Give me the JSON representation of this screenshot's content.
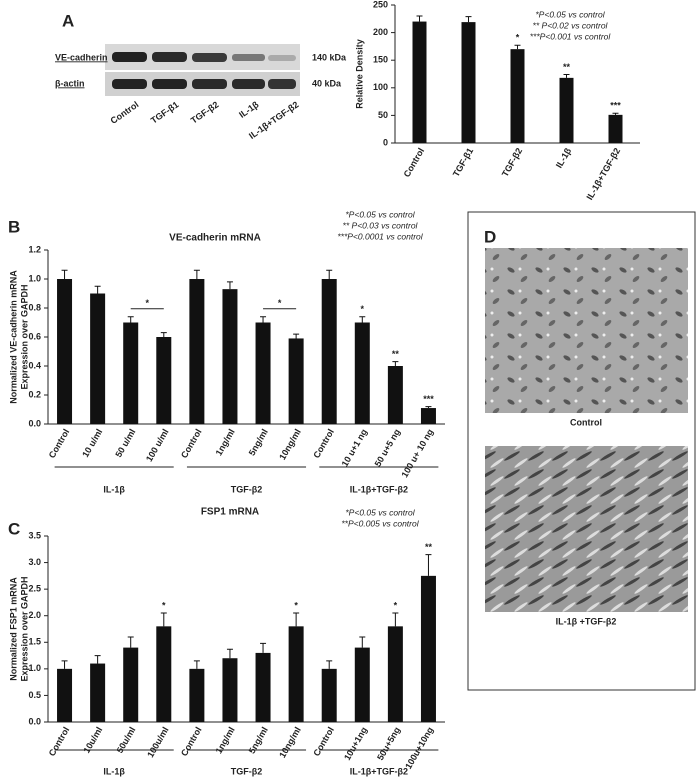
{
  "panels": {
    "A": "A",
    "B": "B",
    "C": "C",
    "D": "D",
    "blot": {
      "rows": [
        "VE-cadherin",
        "β-actin"
      ],
      "sizes": [
        "140 kDa",
        "40 kDa"
      ],
      "lanes": [
        "Control",
        "TGF-β1",
        "TGF-β2",
        "IL-1β",
        "IL-1β+TGF-β2"
      ]
    },
    "images": [
      "Control",
      "IL-1β +TGF-β2"
    ]
  },
  "chart_data": [
    {
      "type": "bar",
      "ylabel": [
        "Relative Density"
      ],
      "categories": [
        "Control",
        "TGF-β1",
        "TGF-β2",
        "IL-1β",
        "IL-1β+TGF-β2"
      ],
      "values": [
        220,
        219,
        170,
        118,
        51
      ],
      "errors": [
        10,
        10,
        7,
        6,
        3
      ],
      "color": "#111111",
      "ylim": [
        0,
        250
      ],
      "yticks": [
        0,
        50,
        100,
        150,
        200,
        250
      ],
      "annotations": [
        {
          "index": 2,
          "label": "*"
        },
        {
          "index": 3,
          "label": "**"
        },
        {
          "index": 4,
          "label": "***"
        }
      ],
      "notes": [
        "*P<0.05 vs control",
        "** P<0.02 vs control",
        "***P<0.001 vs control"
      ]
    },
    {
      "type": "bar",
      "title": "VE-cadherin mRNA",
      "ylabel": [
        "Normalized VE-cadherin mRNA",
        "Expression over GAPDH"
      ],
      "categories": [
        "Control",
        "10 u/ml",
        "50 u/ml",
        "100 u/ml",
        "Control",
        "1ng/ml",
        "5ng/ml",
        "10ng/ml",
        "Control",
        "10 u+1 ng",
        "50 u+5 ng",
        "100 u+ 10 ng"
      ],
      "values": [
        1.0,
        0.9,
        0.7,
        0.6,
        1.0,
        0.93,
        0.7,
        0.59,
        1.0,
        0.7,
        0.4,
        0.11
      ],
      "errors": [
        0.06,
        0.05,
        0.04,
        0.03,
        0.06,
        0.05,
        0.04,
        0.03,
        0.06,
        0.04,
        0.03,
        0.01
      ],
      "color": "#111111",
      "ylim": [
        0,
        1.2
      ],
      "yticks": [
        {
          "value": 0,
          "label": "0.0"
        },
        0.2,
        0.4,
        0.6,
        0.8,
        {
          "value": 1,
          "label": "1.0"
        },
        1.2
      ],
      "annotations": [
        {
          "index": 9,
          "label": "*"
        },
        {
          "index": 10,
          "label": "**"
        },
        {
          "index": 11,
          "label": "***"
        }
      ],
      "brackets": [
        {
          "from": 2,
          "to": 3,
          "label": "*"
        },
        {
          "from": 6,
          "to": 7,
          "label": "*"
        }
      ],
      "groups": [
        {
          "label": "IL-1β",
          "from": 0,
          "to": 3
        },
        {
          "label": "TGF-β2",
          "from": 4,
          "to": 7
        },
        {
          "label": "IL-1β+TGF-β2",
          "from": 8,
          "to": 11
        }
      ],
      "notes": [
        "*P<0.05 vs control",
        "** P<0.03 vs control",
        "***P<0.0001 vs control"
      ]
    },
    {
      "type": "bar",
      "title": "FSP1 mRNA",
      "ylabel": [
        "Normalized FSP1 mRNA",
        "Expression over GAPDH"
      ],
      "categories": [
        "Control",
        "10u/ml",
        "50u/ml",
        "100u/ml",
        "Control",
        "1ng/ml",
        "5ng/ml",
        "10ng/ml",
        "Control",
        "10u+1ng",
        "50u+5ng",
        "100u+10ng"
      ],
      "values": [
        1.0,
        1.1,
        1.4,
        1.8,
        1.0,
        1.2,
        1.3,
        1.8,
        1.0,
        1.4,
        1.8,
        2.75
      ],
      "errors": [
        0.15,
        0.15,
        0.2,
        0.25,
        0.15,
        0.17,
        0.18,
        0.25,
        0.15,
        0.2,
        0.25,
        0.4
      ],
      "color": "#111111",
      "ylim": [
        0,
        3.5
      ],
      "yticks": [
        {
          "value": 0,
          "label": "0.0"
        },
        0.5,
        {
          "value": 1,
          "label": "1.0"
        },
        1.5,
        {
          "value": 2,
          "label": "2.0"
        },
        2.5,
        {
          "value": 3,
          "label": "3.0"
        },
        3.5
      ],
      "annotations": [
        {
          "index": 3,
          "label": "*"
        },
        {
          "index": 7,
          "label": "*"
        },
        {
          "index": 10,
          "label": "*"
        },
        {
          "index": 11,
          "label": "**"
        }
      ],
      "groups": [
        {
          "label": "IL-1β",
          "from": 0,
          "to": 3
        },
        {
          "label": "TGF-β2",
          "from": 4,
          "to": 7
        },
        {
          "label": "IL-1β+TGF-β2",
          "from": 8,
          "to": 11
        }
      ],
      "notes": [
        "*P<0.05 vs control",
        "**P<0.005 vs control"
      ]
    }
  ]
}
